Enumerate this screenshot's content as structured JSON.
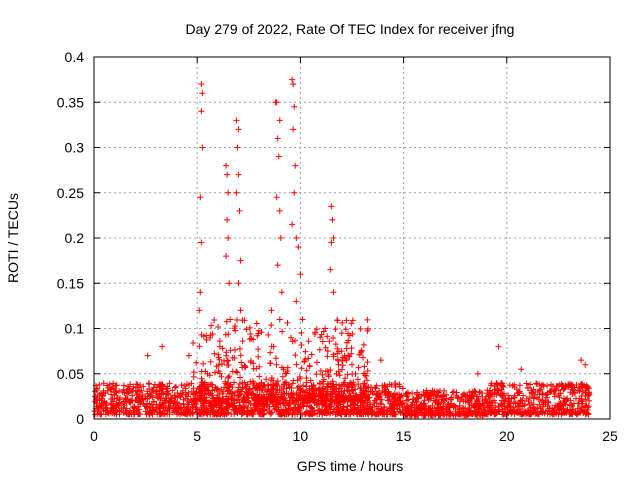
{
  "chart_data": {
    "type": "scatter",
    "title": "Day 279 of 2022, Rate Of TEC Index for receiver jfng",
    "xlabel": "GPS time / hours",
    "ylabel": "ROTI / TECUs",
    "xlim": [
      0,
      25
    ],
    "ylim": [
      0,
      0.4
    ],
    "xticks": [
      0,
      5,
      10,
      15,
      20,
      25
    ],
    "yticks": [
      0,
      0.05,
      0.1,
      0.15,
      0.2,
      0.25,
      0.3,
      0.35,
      0.4
    ],
    "xtick_labels": [
      "0",
      "5",
      "10",
      "15",
      "20",
      "25"
    ],
    "ytick_labels": [
      "0",
      "0.05",
      "0.1",
      "0.15",
      "0.2",
      "0.25",
      "0.3",
      "0.35",
      "0.4"
    ],
    "grid": true,
    "marker": "+",
    "color": "#ff0000",
    "series": [
      {
        "name": "ROTI",
        "baseline_band": [
          0.005,
          0.04
        ],
        "notable_points": [
          {
            "x": 5.1,
            "y": 0.12
          },
          {
            "x": 5.2,
            "y": 0.37
          },
          {
            "x": 5.25,
            "y": 0.36
          },
          {
            "x": 5.2,
            "y": 0.34
          },
          {
            "x": 5.25,
            "y": 0.3
          },
          {
            "x": 5.15,
            "y": 0.245
          },
          {
            "x": 5.2,
            "y": 0.195
          },
          {
            "x": 5.15,
            "y": 0.14
          },
          {
            "x": 6.1,
            "y": 0.08
          },
          {
            "x": 6.4,
            "y": 0.28
          },
          {
            "x": 6.45,
            "y": 0.27
          },
          {
            "x": 6.5,
            "y": 0.25
          },
          {
            "x": 6.45,
            "y": 0.22
          },
          {
            "x": 6.5,
            "y": 0.2
          },
          {
            "x": 6.4,
            "y": 0.18
          },
          {
            "x": 6.55,
            "y": 0.15
          },
          {
            "x": 6.6,
            "y": 0.11
          },
          {
            "x": 6.9,
            "y": 0.33
          },
          {
            "x": 7.0,
            "y": 0.32
          },
          {
            "x": 6.95,
            "y": 0.3
          },
          {
            "x": 7.0,
            "y": 0.27
          },
          {
            "x": 6.9,
            "y": 0.25
          },
          {
            "x": 7.05,
            "y": 0.23
          },
          {
            "x": 7.1,
            "y": 0.175
          },
          {
            "x": 7.0,
            "y": 0.15
          },
          {
            "x": 7.1,
            "y": 0.12
          },
          {
            "x": 8.6,
            "y": 0.12
          },
          {
            "x": 8.8,
            "y": 0.35
          },
          {
            "x": 8.85,
            "y": 0.35
          },
          {
            "x": 9.0,
            "y": 0.33
          },
          {
            "x": 8.9,
            "y": 0.31
          },
          {
            "x": 8.95,
            "y": 0.29
          },
          {
            "x": 8.85,
            "y": 0.245
          },
          {
            "x": 9.0,
            "y": 0.23
          },
          {
            "x": 9.05,
            "y": 0.2
          },
          {
            "x": 8.9,
            "y": 0.17
          },
          {
            "x": 9.1,
            "y": 0.14
          },
          {
            "x": 9.0,
            "y": 0.11
          },
          {
            "x": 9.6,
            "y": 0.375
          },
          {
            "x": 9.65,
            "y": 0.37
          },
          {
            "x": 9.7,
            "y": 0.345
          },
          {
            "x": 9.65,
            "y": 0.32
          },
          {
            "x": 9.75,
            "y": 0.28
          },
          {
            "x": 9.7,
            "y": 0.25
          },
          {
            "x": 9.6,
            "y": 0.215
          },
          {
            "x": 9.8,
            "y": 0.2
          },
          {
            "x": 9.9,
            "y": 0.19
          },
          {
            "x": 10.0,
            "y": 0.16
          },
          {
            "x": 9.8,
            "y": 0.13
          },
          {
            "x": 10.1,
            "y": 0.11
          },
          {
            "x": 11.5,
            "y": 0.235
          },
          {
            "x": 11.55,
            "y": 0.22
          },
          {
            "x": 11.6,
            "y": 0.2
          },
          {
            "x": 11.5,
            "y": 0.195
          },
          {
            "x": 11.45,
            "y": 0.165
          },
          {
            "x": 11.6,
            "y": 0.14
          },
          {
            "x": 11.2,
            "y": 0.1
          },
          {
            "x": 12.0,
            "y": 0.075
          },
          {
            "x": 12.5,
            "y": 0.06
          },
          {
            "x": 19.6,
            "y": 0.08
          },
          {
            "x": 20.7,
            "y": 0.055
          },
          {
            "x": 23.6,
            "y": 0.065
          },
          {
            "x": 23.8,
            "y": 0.06
          },
          {
            "x": 2.6,
            "y": 0.07
          },
          {
            "x": 3.3,
            "y": 0.08
          },
          {
            "x": 4.6,
            "y": 0.07
          },
          {
            "x": 13.9,
            "y": 0.065
          },
          {
            "x": 18.6,
            "y": 0.05
          }
        ]
      }
    ]
  }
}
